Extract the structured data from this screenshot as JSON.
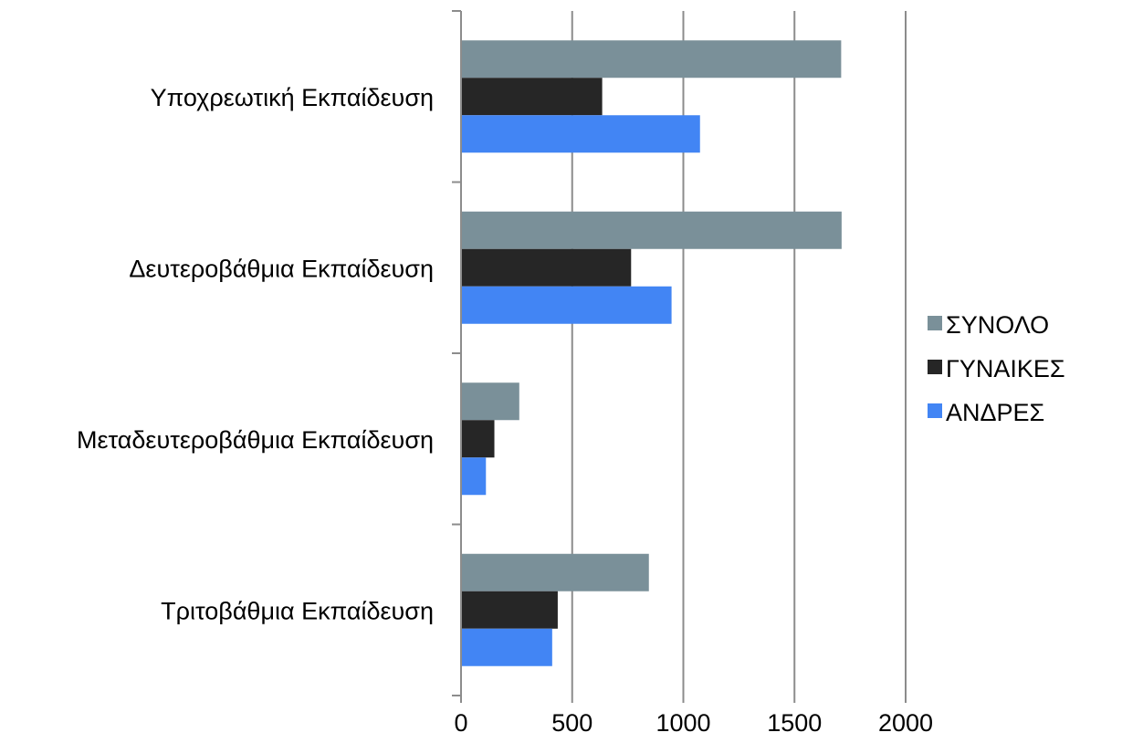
{
  "chart_data": {
    "type": "bar",
    "orientation": "horizontal",
    "title": "",
    "xlabel": "",
    "ylabel": "",
    "categories": [
      "Υποχρεωτική Εκπαίδευση",
      "Δευτεροβάθμια Εκπαίδευση",
      "Μεταδευτεροβάθμια Εκπαίδευση",
      "Τριτοβάθμια Εκπαίδευση"
    ],
    "series": [
      {
        "name": "ΣΥΝΟΛΟ",
        "color": "#7a9099",
        "values": [
          1710,
          1712,
          262,
          845
        ]
      },
      {
        "name": "ΓΥΝΑΙΚΕΣ",
        "color": "#262626",
        "values": [
          635,
          765,
          150,
          435
        ]
      },
      {
        "name": "ΑΝΔΡΕΣ",
        "color": "#4285f4",
        "values": [
          1075,
          947,
          112,
          410
        ]
      }
    ],
    "xlim": [
      0,
      2000
    ],
    "xticks": [
      "0",
      "500",
      "1000",
      "1500",
      "2000"
    ],
    "grid": true,
    "legend_position": "right"
  }
}
